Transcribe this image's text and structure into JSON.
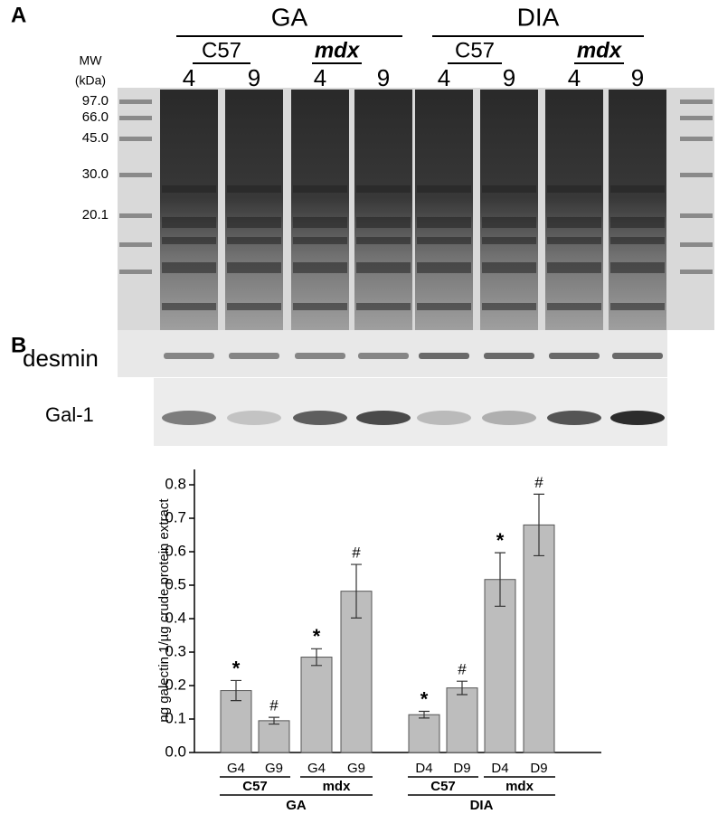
{
  "panel_a": {
    "label": "A",
    "groups": [
      "GA",
      "DIA"
    ],
    "strains": [
      "C57",
      "mdx",
      "C57",
      "mdx"
    ],
    "lanes": [
      "4",
      "9",
      "4",
      "9",
      "4",
      "9",
      "4",
      "9"
    ],
    "mw_title": "MW",
    "mw_unit": "(kDa)",
    "mw_markers": [
      "97.0",
      "66.0",
      "45.0",
      "30.0",
      "20.1"
    ]
  },
  "panel_b": {
    "label": "B",
    "blots": [
      "desmin",
      "Gal-1"
    ]
  },
  "chart_data": {
    "type": "bar",
    "y_label": "ng galectin 1/µg crude protein extract",
    "categories": [
      "G4",
      "G9",
      "G4",
      "G9",
      "D4",
      "D9",
      "D4",
      "D9"
    ],
    "subgroups": [
      "C57",
      "mdx",
      "C57",
      "mdx"
    ],
    "groups": [
      "GA",
      "DIA"
    ],
    "values": [
      0.185,
      0.095,
      0.285,
      0.482,
      0.113,
      0.193,
      0.517,
      0.68
    ],
    "errors": [
      0.03,
      0.01,
      0.025,
      0.08,
      0.01,
      0.02,
      0.08,
      0.092
    ],
    "markers": [
      "*",
      "#",
      "*",
      "#",
      "*",
      "#",
      "*",
      "#"
    ],
    "color": "#bdbdbd",
    "ylim": [
      0,
      0.846
    ],
    "yticks": [
      {
        "value": 0,
        "label": "0.0"
      },
      0.1,
      0.2,
      0.3,
      0.4,
      0.5,
      0.6,
      0.7,
      0.8
    ]
  }
}
